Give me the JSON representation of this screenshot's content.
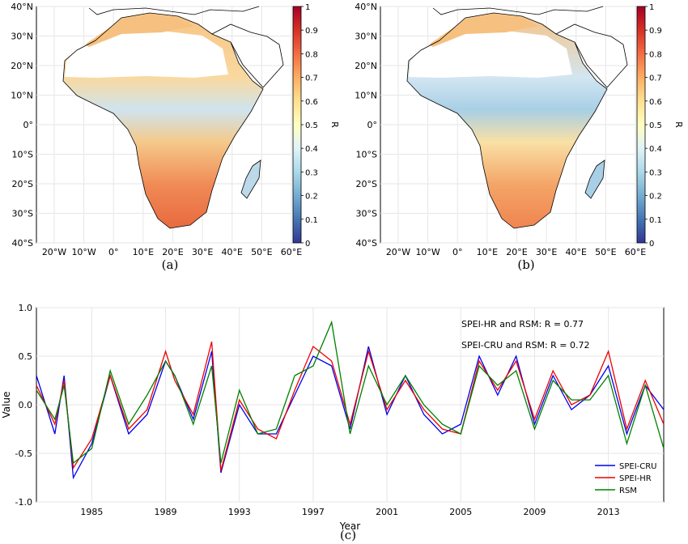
{
  "chart_data": [
    {
      "type": "heatmap",
      "panel": "(a)",
      "xticks": [
        "20°W",
        "10°W",
        "0°",
        "10°E",
        "20°E",
        "30°E",
        "40°E",
        "50°E",
        "60°E"
      ],
      "yticks": [
        "40°N",
        "30°N",
        "20°N",
        "10°N",
        "0°",
        "10°S",
        "20°S",
        "30°S",
        "40°S"
      ],
      "colorbar": {
        "label": "R",
        "min": 0,
        "max": 1,
        "ticks": [
          "0",
          "0.1",
          "0.2",
          "0.3",
          "0.4",
          "0.5",
          "0.6",
          "0.7",
          "0.8",
          "0.9",
          "1"
        ],
        "colors": [
          "#313695",
          "#4575b4",
          "#74add1",
          "#abd9e9",
          "#e0f3f8",
          "#ffffbf",
          "#fee090",
          "#fdae61",
          "#f46d43",
          "#d73027",
          "#a50026"
        ]
      },
      "grid": true
    },
    {
      "type": "heatmap",
      "panel": "(b)",
      "xticks": [
        "20°W",
        "10°W",
        "0°",
        "10°E",
        "20°E",
        "30°E",
        "40°E",
        "50°E",
        "60°E"
      ],
      "yticks": [
        "40°N",
        "30°N",
        "20°N",
        "10°N",
        "0°",
        "10°S",
        "20°S",
        "30°S",
        "40°S"
      ],
      "colorbar": {
        "label": "R",
        "min": 0,
        "max": 1,
        "ticks": [
          "0",
          "0.1",
          "0.2",
          "0.3",
          "0.4",
          "0.5",
          "0.6",
          "0.7",
          "0.8",
          "0.9",
          "1"
        ]
      },
      "grid": true
    },
    {
      "type": "line",
      "panel": "(c)",
      "xlabel": "Year",
      "ylabel": "Value",
      "xlim": [
        1982,
        2016
      ],
      "ylim": [
        -1.0,
        1.0
      ],
      "xticks": [
        "1985",
        "1989",
        "1993",
        "1997",
        "2001",
        "2005",
        "2009",
        "2013"
      ],
      "yticks": [
        "1.0",
        "0.5",
        "0.0",
        "-0.5",
        "-1.0"
      ],
      "annotations": [
        "SPEI-HR and RSM: R = 0.77",
        "SPEI-CRU and RSM: R = 0.72"
      ],
      "legend_position": "bottom-right",
      "grid": true,
      "x": [
        1982.0,
        1983.0,
        1983.5,
        1984.0,
        1985.0,
        1986.0,
        1987.0,
        1988.0,
        1989.0,
        1989.5,
        1990.5,
        1991.5,
        1992.0,
        1993.0,
        1994.0,
        1995.0,
        1996.0,
        1997.0,
        1998.0,
        1999.0,
        2000.0,
        2001.0,
        2002.0,
        2003.0,
        2004.0,
        2005.0,
        2006.0,
        2007.0,
        2008.0,
        2009.0,
        2010.0,
        2011.0,
        2012.0,
        2013.0,
        2014.0,
        2015.0,
        2016.0
      ],
      "series": [
        {
          "name": "SPEI-CRU",
          "color": "#0000ee",
          "values": [
            0.3,
            -0.3,
            0.3,
            -0.75,
            -0.4,
            0.3,
            -0.3,
            -0.1,
            0.45,
            0.3,
            -0.15,
            0.55,
            -0.7,
            0.0,
            -0.3,
            -0.3,
            0.1,
            0.5,
            0.4,
            -0.25,
            0.6,
            -0.1,
            0.3,
            -0.1,
            -0.3,
            -0.2,
            0.5,
            0.1,
            0.5,
            -0.2,
            0.3,
            -0.05,
            0.1,
            0.4,
            -0.3,
            0.2,
            -0.05
          ]
        },
        {
          "name": "SPEI-HR",
          "color": "#ee0000",
          "values": [
            0.2,
            -0.2,
            0.25,
            -0.65,
            -0.35,
            0.3,
            -0.25,
            -0.05,
            0.55,
            0.25,
            -0.1,
            0.65,
            -0.68,
            0.05,
            -0.25,
            -0.35,
            0.15,
            0.6,
            0.45,
            -0.2,
            0.55,
            -0.05,
            0.25,
            -0.05,
            -0.25,
            -0.3,
            0.45,
            0.15,
            0.45,
            -0.15,
            0.35,
            0.0,
            0.1,
            0.55,
            -0.25,
            0.25,
            -0.2
          ]
        },
        {
          "name": "RSM",
          "color": "#008000",
          "values": [
            0.15,
            -0.15,
            0.2,
            -0.6,
            -0.45,
            0.35,
            -0.2,
            0.1,
            0.45,
            0.3,
            -0.2,
            0.4,
            -0.6,
            0.15,
            -0.3,
            -0.25,
            0.3,
            0.4,
            0.85,
            -0.3,
            0.4,
            0.0,
            0.3,
            0.0,
            -0.2,
            -0.3,
            0.4,
            0.2,
            0.35,
            -0.25,
            0.25,
            0.05,
            0.05,
            0.3,
            -0.4,
            0.2,
            -0.45
          ]
        }
      ]
    }
  ],
  "captions": {
    "a": "(a)",
    "b": "(b)",
    "c": "(c)"
  }
}
